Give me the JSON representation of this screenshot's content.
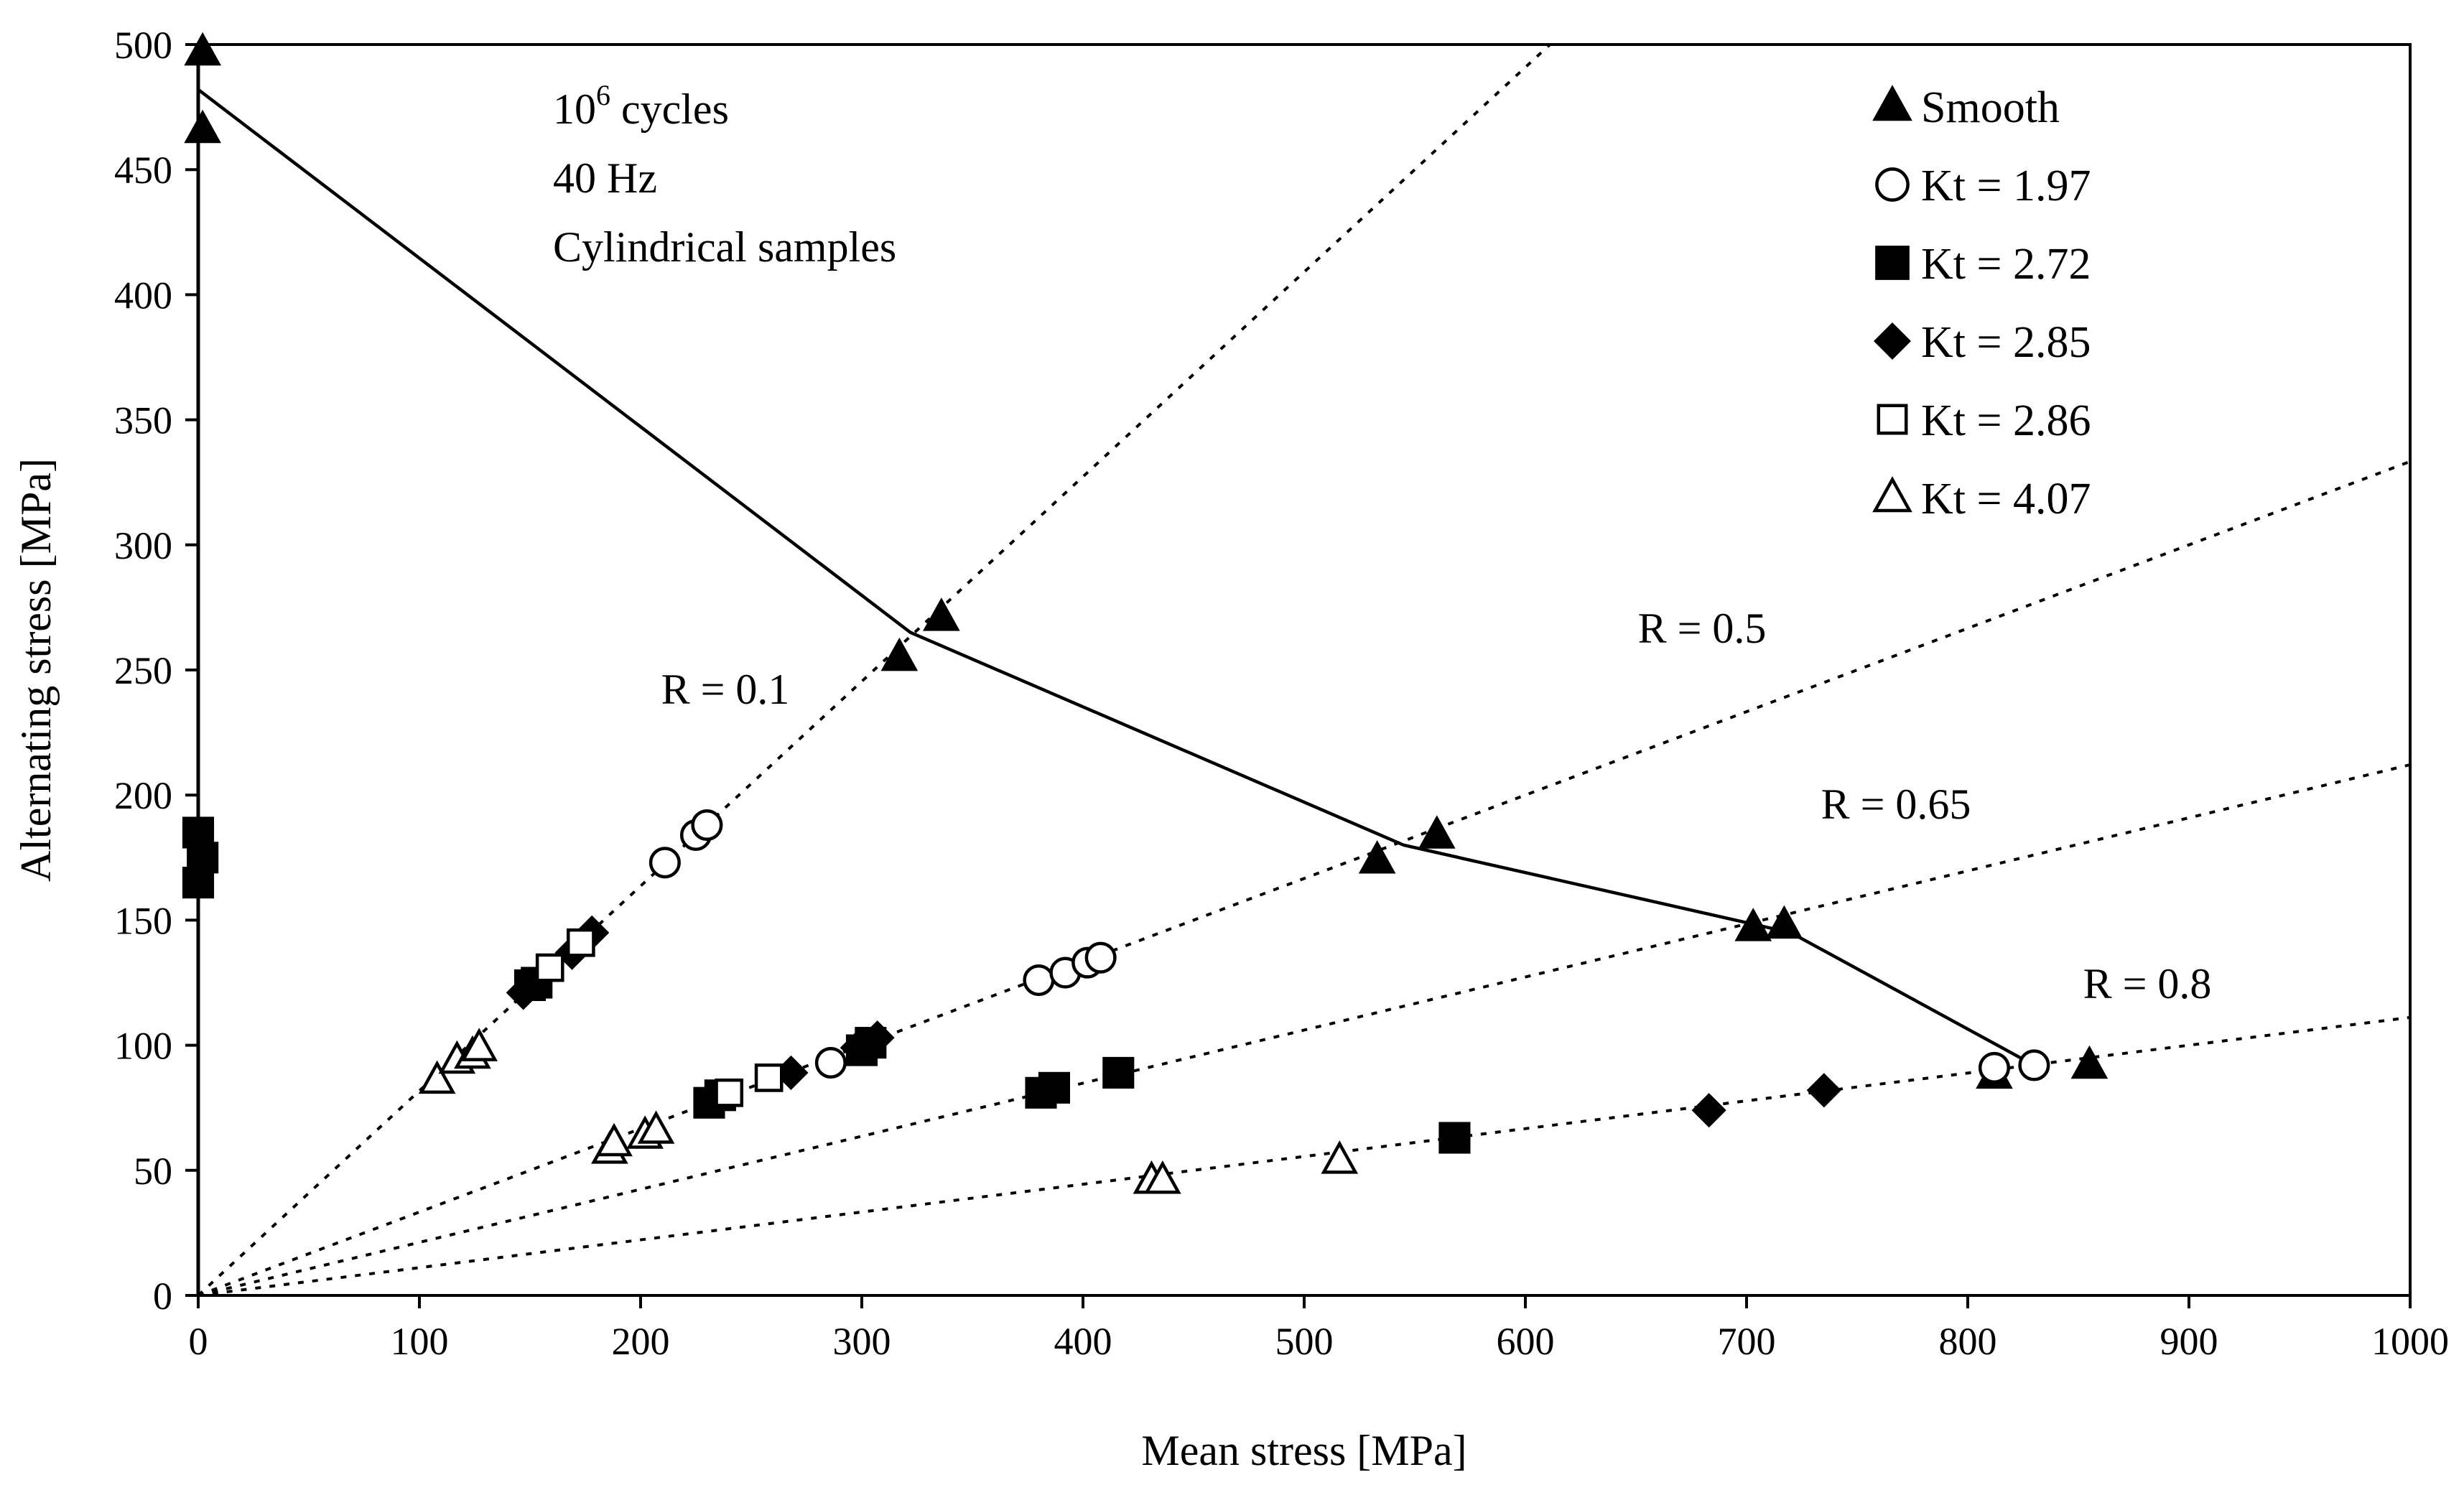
{
  "chart_data": {
    "type": "scatter",
    "title": "",
    "xlabel": "Mean stress [MPa]",
    "ylabel": "Alternating stress [MPa]",
    "xlim": [
      0,
      1000
    ],
    "ylim": [
      0,
      500
    ],
    "x_ticks": [
      "0",
      "100",
      "200",
      "300",
      "400",
      "500",
      "600",
      "700",
      "800",
      "900",
      "1000"
    ],
    "y_ticks": [
      "0",
      "50",
      "100",
      "150",
      "200",
      "250",
      "300",
      "350",
      "400",
      "450",
      "500"
    ],
    "grid": false,
    "legend_position": "top-right",
    "annotations": {
      "line1": "10",
      "line1_sup": "6",
      "line1_rest": " cycles",
      "line2": "40 Hz",
      "line3": "Cylindrical samples"
    },
    "r_lines": [
      {
        "label": "R = 0.1",
        "ratio": 0.1
      },
      {
        "label": "R = 0.5",
        "ratio": 0.5
      },
      {
        "label": "R = 0.65",
        "ratio": 0.65
      },
      {
        "label": "R = 0.8",
        "ratio": 0.8
      }
    ],
    "fit_line": {
      "name": "Smooth fit",
      "x": [
        0,
        322,
        545,
        720,
        830
      ],
      "y": [
        482,
        265,
        180,
        145,
        92
      ]
    },
    "series": [
      {
        "name": "Smooth",
        "marker": "triangle",
        "filled": true,
        "x": [
          2,
          2,
          317,
          336,
          533,
          560,
          703,
          717,
          812,
          855
        ],
        "y": [
          497,
          466,
          255,
          271,
          174,
          184,
          147,
          148,
          88,
          92
        ]
      },
      {
        "name": "Kt = 1.97",
        "marker": "circle",
        "filled": false,
        "x": [
          211,
          225,
          230,
          286,
          380,
          392,
          402,
          408,
          812,
          830
        ],
        "y": [
          173,
          184,
          188,
          93,
          126,
          129,
          133,
          135,
          91,
          92
        ]
      },
      {
        "name": "Kt = 2.72",
        "marker": "square",
        "filled": true,
        "x": [
          0,
          0,
          2,
          150,
          153,
          231,
          236,
          300,
          304,
          381,
          387,
          416,
          568
        ],
        "y": [
          185,
          165,
          175,
          124,
          125,
          77,
          80,
          98,
          101,
          81,
          83,
          89,
          63
        ],
        "extra_note": ""
      },
      {
        "name": "Kt = 2.85",
        "marker": "diamond",
        "filled": true,
        "x": [
          147,
          169,
          178,
          268,
          298,
          307,
          683,
          735
        ],
        "y": [
          121,
          137,
          145,
          89,
          99,
          103,
          74,
          82
        ]
      },
      {
        "name": "Kt = 2.86",
        "marker": "square",
        "filled": false,
        "x": [
          159,
          173,
          240,
          258
        ],
        "y": [
          131,
          141,
          81,
          87
        ]
      },
      {
        "name": "Kt = 4.07",
        "marker": "triangle",
        "filled": false,
        "x": [
          108,
          117,
          124,
          127,
          186,
          188,
          202,
          207,
          431,
          436,
          516
        ],
        "y": [
          86,
          94,
          96,
          99,
          58,
          61,
          64,
          66,
          46,
          46,
          54
        ]
      }
    ]
  }
}
